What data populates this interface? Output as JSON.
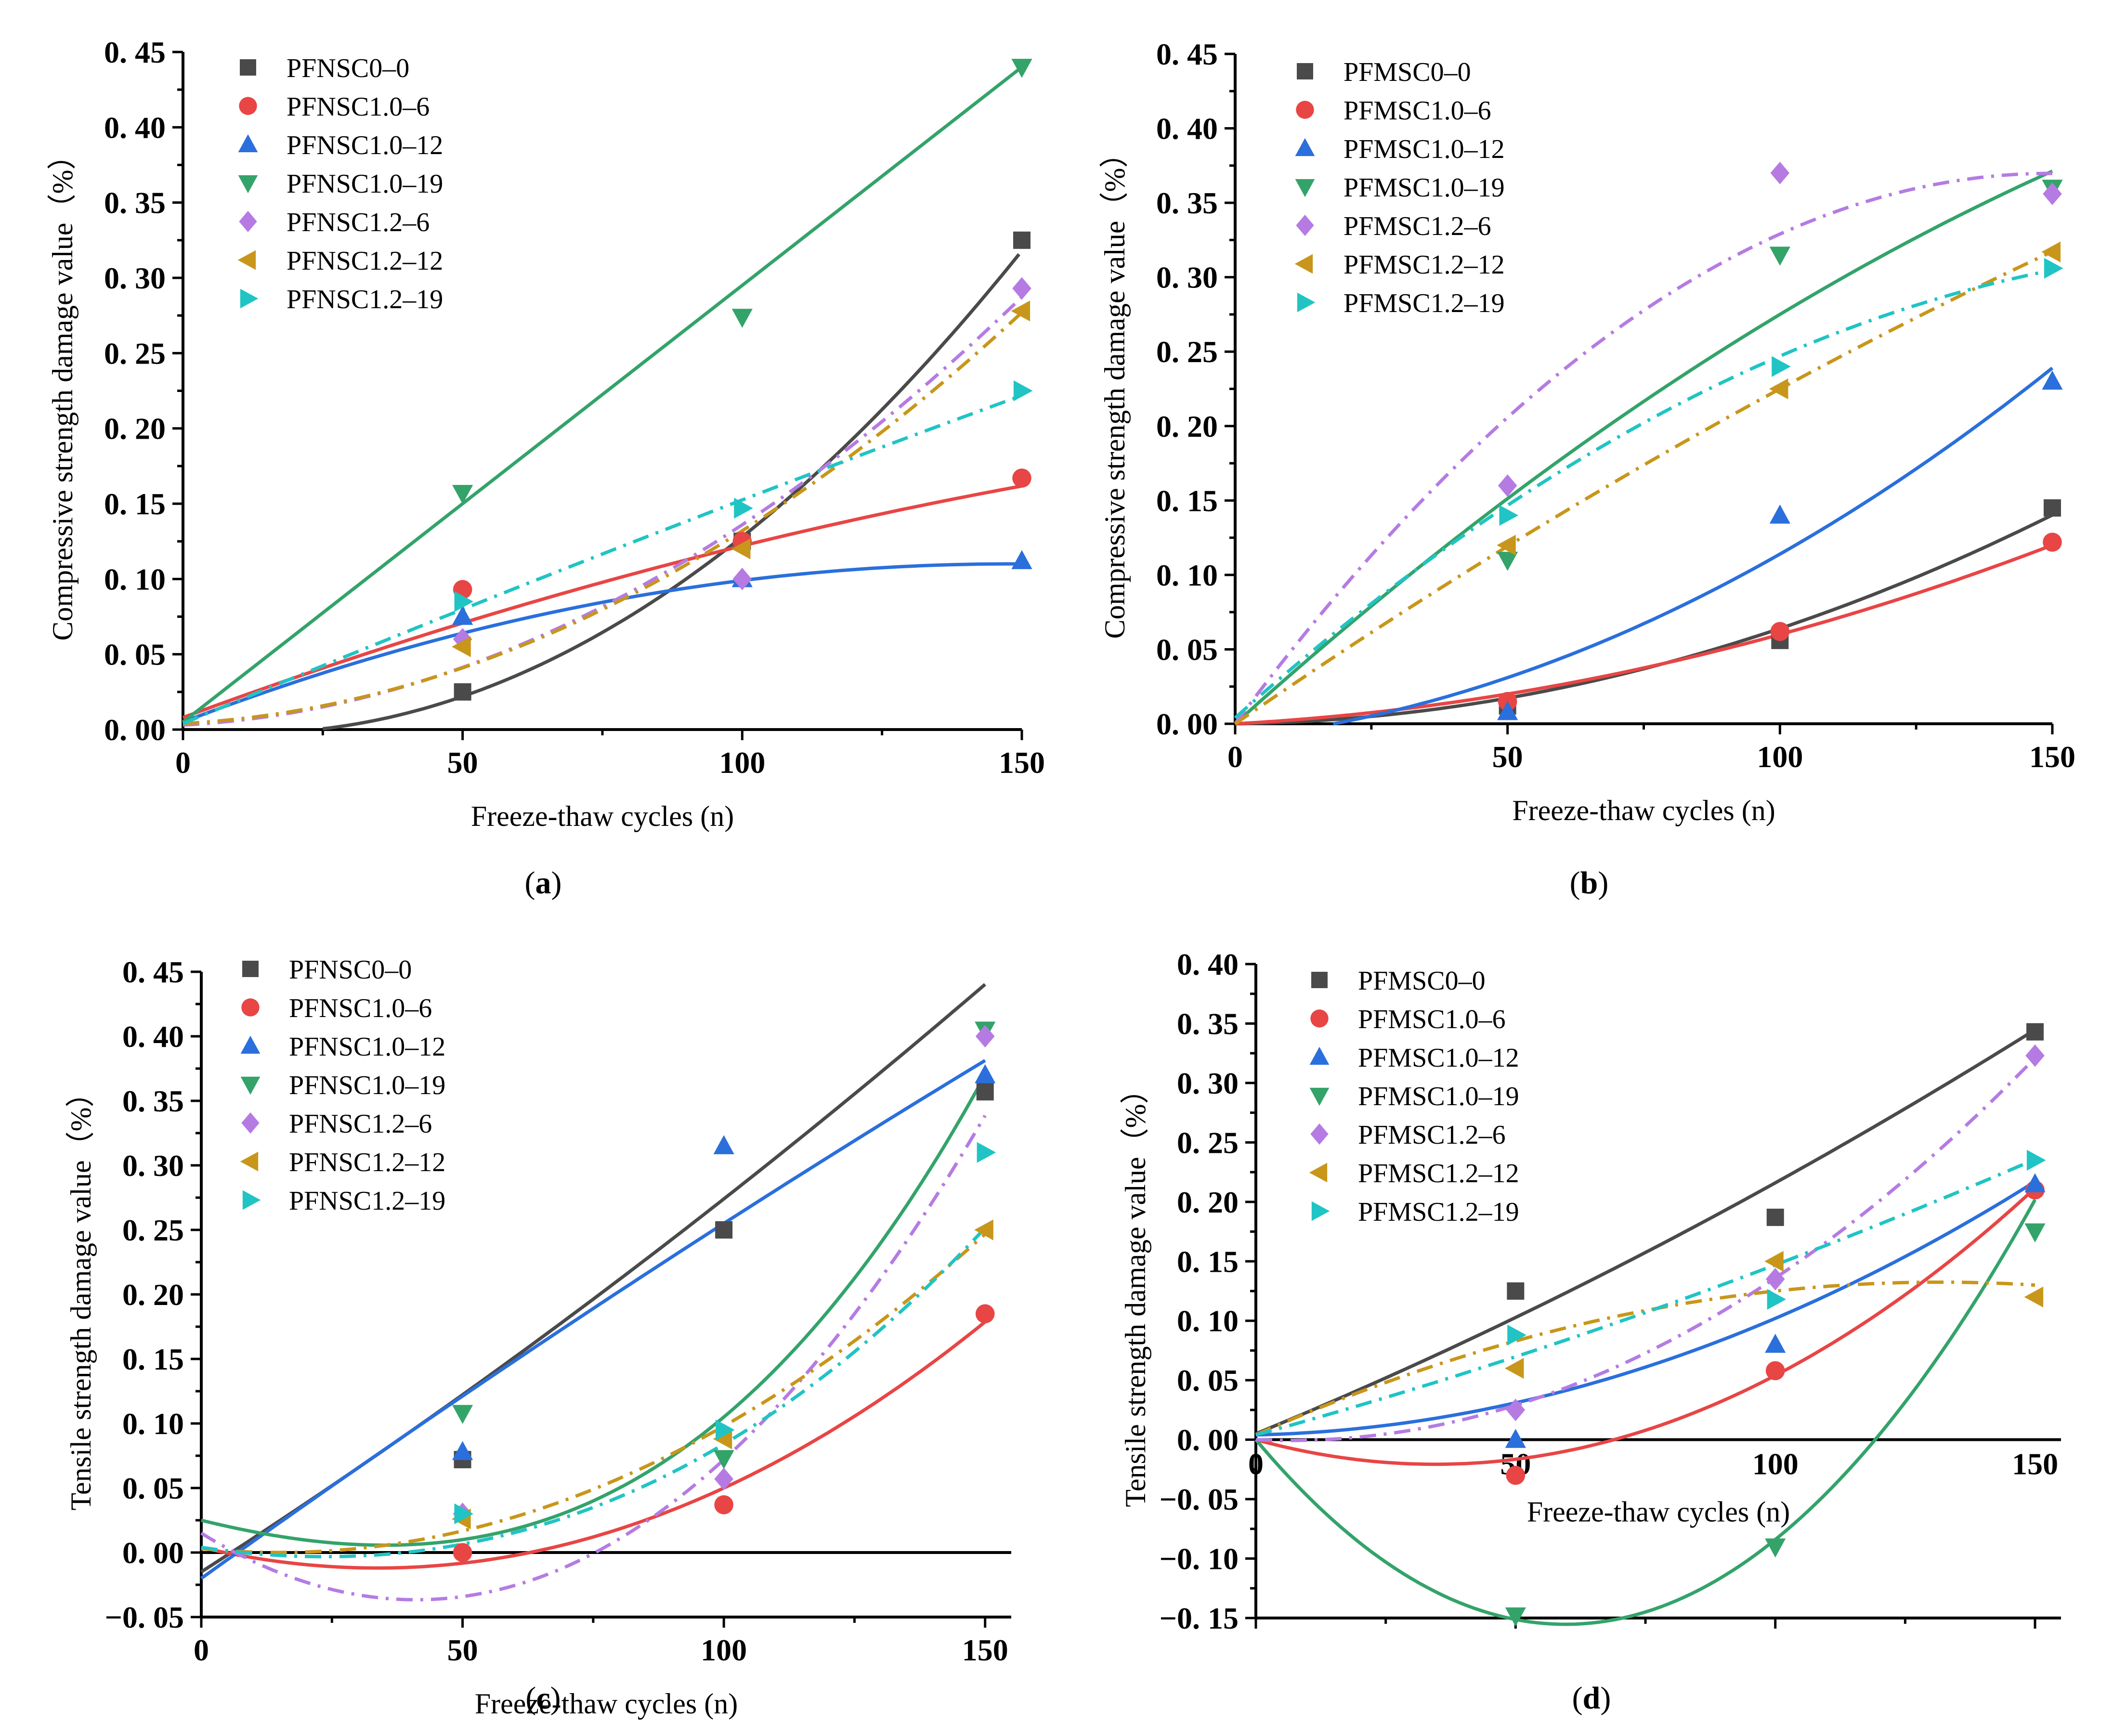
{
  "figure": {
    "series_colors": {
      "PF0-0": "#4a4a4a",
      "1.0-6": "#e84545",
      "1.0-12": "#2a6fdc",
      "1.0-19": "#33a36a",
      "1.2-6": "#b57be3",
      "1.2-12": "#c8961a",
      "1.2-19": "#20c4c4"
    }
  },
  "chart_data": [
    {
      "id": "a",
      "type": "scatter",
      "caption": "(a)",
      "caption_paren_open": "(",
      "caption_letter": "a",
      "caption_paren_close": ")",
      "xlabel": "Freeze-thaw cycles (n)",
      "ylabel": "Compressive strength damage value（%）",
      "xlim": [
        0,
        150
      ],
      "ylim": [
        0,
        0.45
      ],
      "xticks": [
        0,
        50,
        100,
        150
      ],
      "yticks": [
        0,
        0.05,
        0.1,
        0.15,
        0.2,
        0.25,
        0.3,
        0.35,
        0.4,
        0.45
      ],
      "ytick_labels": [
        "0. 00",
        "0. 05",
        "0. 10",
        "0. 15",
        "0. 20",
        "0. 25",
        "0. 30",
        "0. 35",
        "0. 40",
        "0. 45"
      ],
      "x": [
        0,
        50,
        100,
        150
      ],
      "series": [
        {
          "name": "PFNSC0–0",
          "marker": "square",
          "color": "#4a4a4a",
          "line": "solid",
          "points": [
            [
              50,
              0.025
            ],
            [
              100,
              0.125
            ],
            [
              150,
              0.325
            ]
          ],
          "fit": {
            "type": "poly",
            "coef": [
              0.0,
              -0.0004,
              1.68e-05
            ],
            "start": 25
          }
        },
        {
          "name": "PFNSC1.0–6",
          "marker": "circle",
          "color": "#e84545",
          "line": "solid",
          "points": [
            [
              50,
              0.093
            ],
            [
              100,
              0.125
            ],
            [
              150,
              0.167
            ]
          ],
          "fit": {
            "type": "poly",
            "coef": [
              0.008,
              0.00137,
              -2.3e-06
            ]
          }
        },
        {
          "name": "PFNSC1.0–12",
          "marker": "triangle-up",
          "color": "#2a6fdc",
          "line": "solid",
          "points": [
            [
              50,
              0.075
            ],
            [
              100,
              0.1
            ],
            [
              150,
              0.112
            ]
          ],
          "fit": {
            "type": "poly",
            "coef": [
              0.005,
              0.00142,
              -4.8e-06
            ]
          }
        },
        {
          "name": "PFNSC1.0–19",
          "marker": "triangle-down",
          "color": "#33a36a",
          "line": "solid",
          "points": [
            [
              50,
              0.157
            ],
            [
              100,
              0.274
            ],
            [
              150,
              0.44
            ]
          ],
          "fit": {
            "type": "poly",
            "coef": [
              0.005,
              0.0029,
              0.0
            ]
          }
        },
        {
          "name": "PFNSC1.2–6",
          "marker": "diamond",
          "color": "#b57be3",
          "line": "dashdot",
          "points": [
            [
              50,
              0.06
            ],
            [
              100,
              0.1
            ],
            [
              150,
              0.293
            ]
          ],
          "fit": {
            "type": "poly",
            "coef": [
              0.003,
              0.0002,
              1.13e-05
            ]
          }
        },
        {
          "name": "PFNSC1.2–12",
          "marker": "triangle-left",
          "color": "#c8961a",
          "line": "dashdot",
          "points": [
            [
              50,
              0.055
            ],
            [
              100,
              0.12
            ],
            [
              150,
              0.278
            ]
          ],
          "fit": {
            "type": "poly",
            "coef": [
              0.004,
              0.0002,
              1.08e-05
            ]
          }
        },
        {
          "name": "PFNSC1.2–19",
          "marker": "triangle-right",
          "color": "#20c4c4",
          "line": "dashdot",
          "points": [
            [
              50,
              0.085
            ],
            [
              100,
              0.147
            ],
            [
              150,
              0.225
            ]
          ],
          "fit": {
            "type": "poly",
            "coef": [
              0.004,
              0.00155,
              -6.5e-07
            ]
          }
        }
      ]
    },
    {
      "id": "b",
      "type": "scatter",
      "caption": "(b)",
      "caption_paren_open": "(",
      "caption_letter": "b",
      "caption_paren_close": ")",
      "xlabel": "Freeze-thaw cycles (n)",
      "ylabel": "Compressive strength damage value（%）",
      "xlim": [
        0,
        150
      ],
      "ylim": [
        0,
        0.45
      ],
      "xticks": [
        0,
        50,
        100,
        150
      ],
      "yticks": [
        0,
        0.05,
        0.1,
        0.15,
        0.2,
        0.25,
        0.3,
        0.35,
        0.4,
        0.45
      ],
      "ytick_labels": [
        "0. 00",
        "0. 05",
        "0. 10",
        "0. 15",
        "0. 20",
        "0. 25",
        "0. 30",
        "0. 35",
        "0. 40",
        "0. 45"
      ],
      "x": [
        0,
        50,
        100,
        150
      ],
      "series": [
        {
          "name": "PFMSC0–0",
          "marker": "square",
          "color": "#4a4a4a",
          "line": "solid",
          "points": [
            [
              50,
              0.012
            ],
            [
              100,
              0.056
            ],
            [
              150,
              0.145
            ]
          ],
          "fit": {
            "type": "poly",
            "coef": [
              0.0,
              5e-05,
              5.9e-06
            ]
          }
        },
        {
          "name": "PFMSC1.0–6",
          "marker": "circle",
          "color": "#e84545",
          "line": "solid",
          "points": [
            [
              50,
              0.015
            ],
            [
              100,
              0.062
            ],
            [
              150,
              0.122
            ]
          ],
          "fit": {
            "type": "poly",
            "coef": [
              0.0,
              0.0002,
              4e-06
            ]
          }
        },
        {
          "name": "PFMSC1.0–12",
          "marker": "triangle-up",
          "color": "#2a6fdc",
          "line": "solid",
          "points": [
            [
              50,
              0.008
            ],
            [
              100,
              0.14
            ],
            [
              150,
              0.23
            ]
          ],
          "fit": {
            "type": "poly",
            "coef": [
              -0.01,
              0.0004,
              8.4e-06
            ],
            "start": 18
          }
        },
        {
          "name": "PFMSC1.0–19",
          "marker": "triangle-down",
          "color": "#33a36a",
          "line": "solid",
          "points": [
            [
              50,
              0.11
            ],
            [
              100,
              0.315
            ],
            [
              150,
              0.36
            ]
          ],
          "fit": {
            "type": "poly",
            "coef": [
              0.0,
              0.0033,
              -5.5e-06
            ]
          }
        },
        {
          "name": "PFMSC1.2–6",
          "marker": "diamond",
          "color": "#b57be3",
          "line": "dashdot",
          "points": [
            [
              50,
              0.16
            ],
            [
              100,
              0.37
            ],
            [
              150,
              0.356
            ]
          ],
          "fit": {
            "type": "poly",
            "coef": [
              0.0,
              0.00494,
              -1.65e-05
            ]
          }
        },
        {
          "name": "PFMSC1.2–12",
          "marker": "triangle-left",
          "color": "#c8961a",
          "line": "dashdot",
          "points": [
            [
              50,
              0.12
            ],
            [
              100,
              0.225
            ],
            [
              150,
              0.317
            ]
          ],
          "fit": {
            "type": "poly",
            "coef": [
              0.0,
              0.00252,
              -2.7e-06
            ]
          }
        },
        {
          "name": "PFMSC1.2–19",
          "marker": "triangle-right",
          "color": "#20c4c4",
          "line": "dashdot",
          "points": [
            [
              50,
              0.14
            ],
            [
              100,
              0.24
            ],
            [
              150,
              0.306
            ]
          ],
          "fit": {
            "type": "poly",
            "coef": [
              0.004,
              0.00328,
              -8.5e-06
            ]
          }
        }
      ]
    },
    {
      "id": "c",
      "type": "scatter",
      "caption": "(c)",
      "caption_paren_open": "(",
      "caption_letter": "c",
      "caption_paren_close": ")",
      "xlabel": "Freeze-thaw cycles (n)",
      "ylabel": "Tensile strength damage value（%）",
      "xlim": [
        0,
        155
      ],
      "ylim": [
        -0.05,
        0.45
      ],
      "xticks": [
        0,
        50,
        100,
        150
      ],
      "yticks": [
        -0.05,
        0,
        0.05,
        0.1,
        0.15,
        0.2,
        0.25,
        0.3,
        0.35,
        0.4,
        0.45
      ],
      "ytick_labels": [
        "−0. 05",
        "0. 00",
        "0. 05",
        "0. 10",
        "0. 15",
        "0. 20",
        "0. 25",
        "0. 30",
        "0. 35",
        "0. 40",
        "0. 45"
      ],
      "x": [
        0,
        50,
        100,
        150
      ],
      "series": [
        {
          "name": "PFNSC0–0",
          "marker": "square",
          "color": "#4a4a4a",
          "line": "solid",
          "points": [
            [
              50,
              0.072
            ],
            [
              100,
              0.25
            ],
            [
              150,
              0.357
            ]
          ],
          "fit": {
            "type": "poly",
            "coef": [
              -0.015,
              0.0026,
              2.9e-06
            ]
          }
        },
        {
          "name": "PFNSC1.0–6",
          "marker": "circle",
          "color": "#e84545",
          "line": "solid",
          "points": [
            [
              50,
              0.0
            ],
            [
              100,
              0.037
            ],
            [
              150,
              0.185
            ]
          ],
          "fit": {
            "type": "poly",
            "coef": [
              0.004,
              -0.00095,
              1.41e-05
            ]
          }
        },
        {
          "name": "PFNSC1.0–12",
          "marker": "triangle-up",
          "color": "#2a6fdc",
          "line": "solid",
          "points": [
            [
              50,
              0.078
            ],
            [
              100,
              0.315
            ],
            [
              150,
              0.37
            ]
          ],
          "fit": {
            "type": "poly",
            "coef": [
              -0.02,
              0.0029,
              -1.5e-06
            ]
          }
        },
        {
          "name": "PFNSC1.0–19",
          "marker": "triangle-down",
          "color": "#33a36a",
          "line": "solid",
          "points": [
            [
              50,
              0.108
            ],
            [
              100,
              0.073
            ],
            [
              150,
              0.405
            ]
          ],
          "fit": {
            "type": "cubic",
            "coef": [
              0.025,
              -0.001,
              1e-05,
              8e-08
            ]
          }
        },
        {
          "name": "PFNSC1.2–6",
          "marker": "diamond",
          "color": "#b57be3",
          "line": "dashdot",
          "points": [
            [
              50,
              0.03
            ],
            [
              100,
              0.057
            ],
            [
              150,
              0.4
            ]
          ],
          "fit": {
            "type": "cubic",
            "coef": [
              0.015,
              -0.0025,
              3e-05,
              7e-09
            ]
          }
        },
        {
          "name": "PFNSC1.2–12",
          "marker": "triangle-left",
          "color": "#c8961a",
          "line": "dashdot",
          "points": [
            [
              50,
              0.026
            ],
            [
              100,
              0.088
            ],
            [
              150,
              0.25
            ]
          ],
          "fit": {
            "type": "poly",
            "coef": [
              0.003,
              -0.0004,
              1.35e-05
            ]
          }
        },
        {
          "name": "PFNSC1.2–19",
          "marker": "triangle-right",
          "color": "#20c4c4",
          "line": "dashdot",
          "points": [
            [
              50,
              0.03
            ],
            [
              100,
              0.095
            ],
            [
              150,
              0.31
            ]
          ],
          "fit": {
            "type": "cubic",
            "coef": [
              0.004,
              -0.0006,
              1.2e-05,
              2e-08
            ]
          }
        }
      ]
    },
    {
      "id": "d",
      "type": "scatter",
      "caption": "(d)",
      "caption_paren_open": "(",
      "caption_letter": "d",
      "caption_paren_close": ")",
      "xlabel": "Freeze-thaw cycles (n)",
      "ylabel": "Tensile strength damage value（%）",
      "xlim": [
        0,
        155
      ],
      "ylim": [
        -0.15,
        0.4
      ],
      "xticks": [
        0,
        50,
        100,
        150
      ],
      "yticks": [
        -0.15,
        -0.1,
        -0.05,
        0,
        0.05,
        0.1,
        0.15,
        0.2,
        0.25,
        0.3,
        0.35,
        0.4
      ],
      "ytick_labels": [
        "−0. 15",
        "−0. 10",
        "−0. 05",
        "0. 00",
        "0. 05",
        "0. 10",
        "0. 15",
        "0. 20",
        "0. 25",
        "0. 30",
        "0. 35",
        "0. 40"
      ],
      "x": [
        0,
        50,
        100,
        150
      ],
      "series": [
        {
          "name": "PFMSC0–0",
          "marker": "square",
          "color": "#4a4a4a",
          "line": "solid",
          "points": [
            [
              50,
              0.125
            ],
            [
              100,
              0.187
            ],
            [
              150,
              0.343
            ]
          ],
          "fit": {
            "type": "poly",
            "coef": [
              0.005,
              0.0018,
              3.1e-06
            ]
          }
        },
        {
          "name": "PFMSC1.0–6",
          "marker": "circle",
          "color": "#e84545",
          "line": "solid",
          "points": [
            [
              50,
              -0.03
            ],
            [
              100,
              0.058
            ],
            [
              150,
              0.21
            ]
          ],
          "fit": {
            "type": "poly",
            "coef": [
              0.0,
              -0.0012,
              1.74e-05
            ]
          }
        },
        {
          "name": "PFMSC1.0–12",
          "marker": "triangle-up",
          "color": "#2a6fdc",
          "line": "solid",
          "points": [
            [
              50,
              0.0
            ],
            [
              100,
              0.08
            ],
            [
              150,
              0.215
            ]
          ],
          "fit": {
            "type": "poly",
            "coef": [
              0.004,
              0.0001,
              8.8e-06
            ]
          }
        },
        {
          "name": "PFMSC1.0–19",
          "marker": "triangle-down",
          "color": "#33a36a",
          "line": "solid",
          "points": [
            [
              50,
              -0.148
            ],
            [
              100,
              -0.09
            ],
            [
              150,
              0.175
            ]
          ],
          "fit": {
            "type": "poly",
            "coef": [
              0.0,
              -0.00521,
              4.37e-05
            ]
          }
        },
        {
          "name": "PFMSC1.2–6",
          "marker": "diamond",
          "color": "#b57be3",
          "line": "dashdot",
          "points": [
            [
              50,
              0.025
            ],
            [
              100,
              0.135
            ],
            [
              150,
              0.323
            ]
          ],
          "fit": {
            "type": "poly",
            "coef": [
              0.0,
              -0.0002,
              1.56e-05
            ]
          }
        },
        {
          "name": "PFMSC1.2–12",
          "marker": "triangle-left",
          "color": "#c8961a",
          "line": "dashdot",
          "points": [
            [
              50,
              0.06
            ],
            [
              100,
              0.15
            ],
            [
              150,
              0.12
            ]
          ],
          "fit": {
            "type": "poly",
            "coef": [
              0.004,
              0.00195,
              -7.4e-06
            ]
          }
        },
        {
          "name": "PFMSC1.2–19",
          "marker": "triangle-right",
          "color": "#20c4c4",
          "line": "dashdot",
          "points": [
            [
              50,
              0.088
            ],
            [
              100,
              0.118
            ],
            [
              150,
              0.235
            ]
          ],
          "fit": {
            "type": "poly",
            "coef": [
              0.004,
              0.0012,
              2.3e-06
            ]
          }
        }
      ]
    }
  ]
}
